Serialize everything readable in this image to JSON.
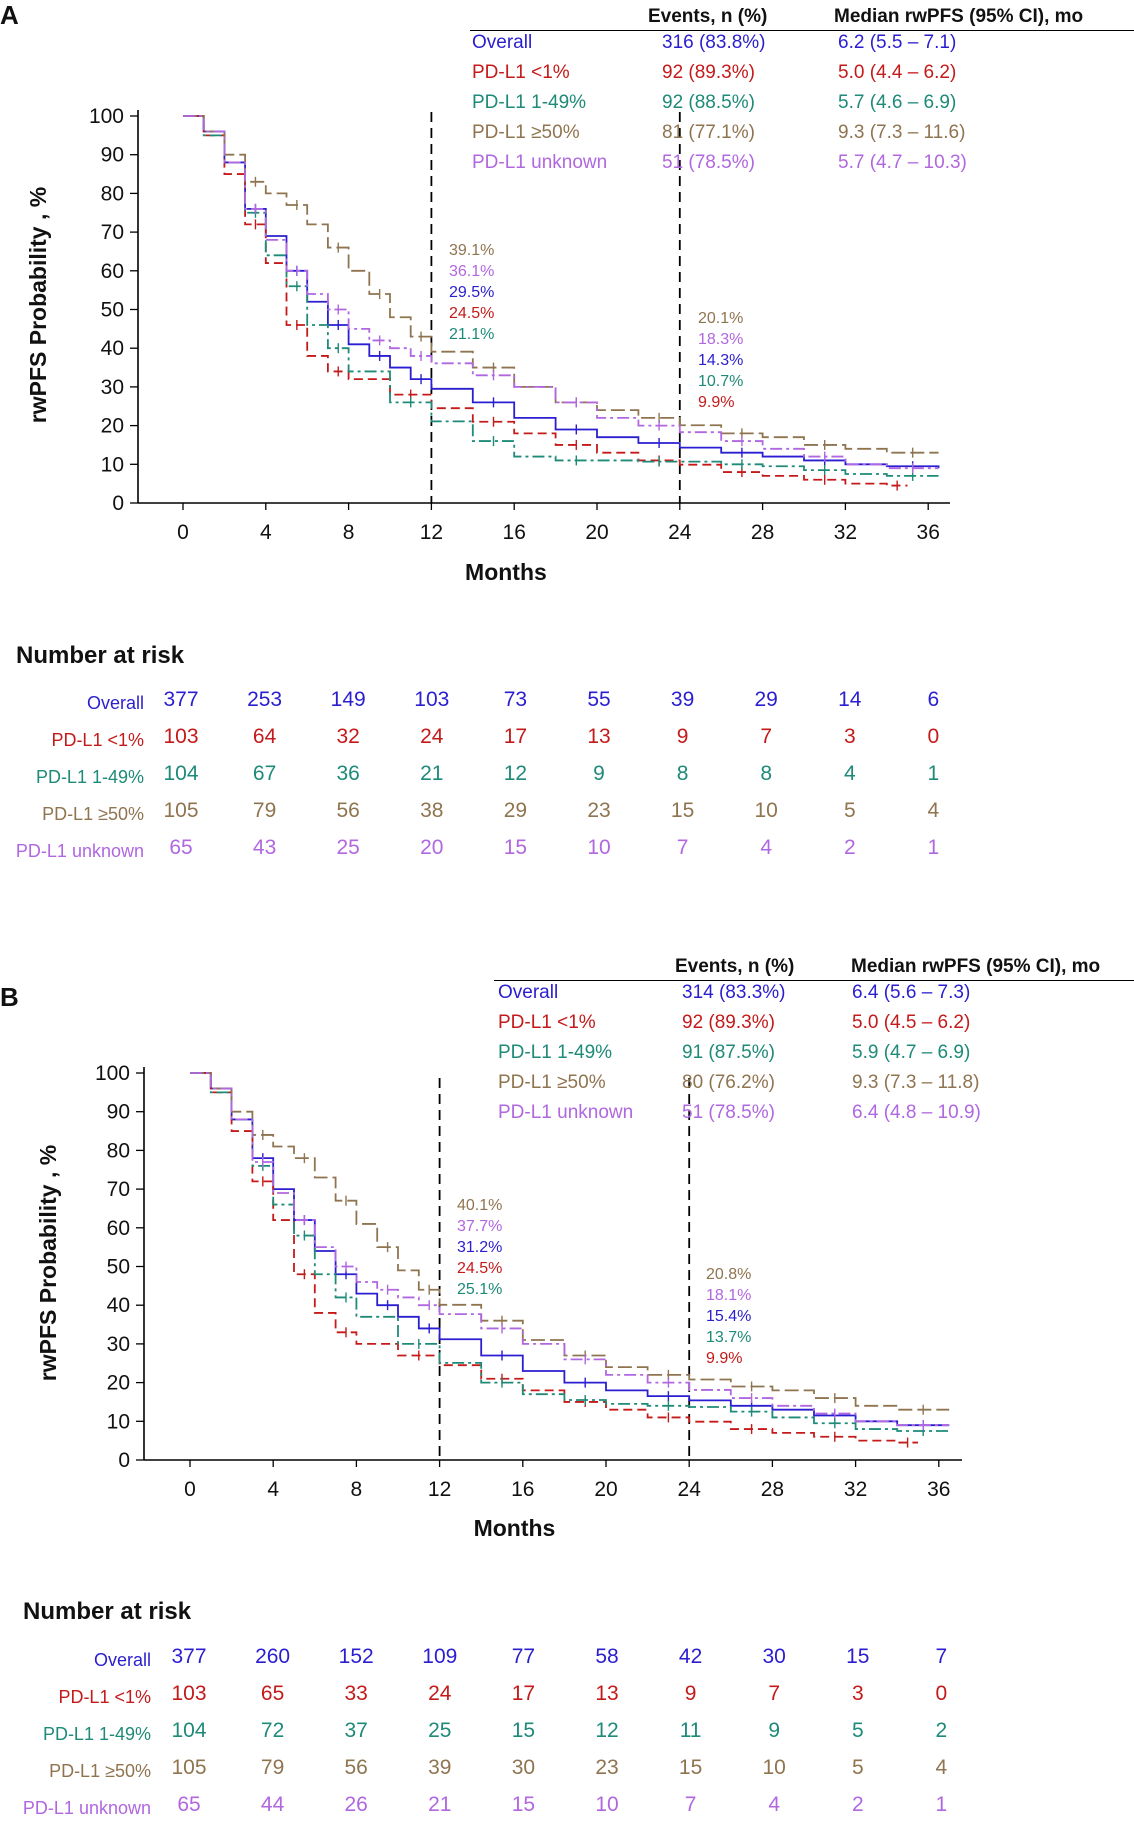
{
  "colors": {
    "overall": "#2a1ed0",
    "pdl1_lt1": "#c41a1a",
    "pdl1_1_49": "#1e8a78",
    "pdl1_ge50": "#8f7450",
    "pdl1_unknown": "#b067e0"
  },
  "panels": [
    {
      "label": "A",
      "table": {
        "events_header": "Events, n (%)",
        "median_header": "Median rwPFS (95% CI), mo",
        "rows": [
          {
            "name": "Overall",
            "events": "316 (83.8%)",
            "median": "6.2 (5.5 – 7.1)",
            "color_key": "overall"
          },
          {
            "name": "PD-L1 <1%",
            "events": "92 (89.3%)",
            "median": "5.0 (4.4 – 6.2)",
            "color_key": "pdl1_lt1"
          },
          {
            "name": "PD-L1 1-49%",
            "events": "92 (88.5%)",
            "median": "5.7 (4.6 – 6.9)",
            "color_key": "pdl1_1_49"
          },
          {
            "name": "PD-L1 ≥50%",
            "events": "81 (77.1%)",
            "median": "9.3 (7.3 – 11.6)",
            "color_key": "pdl1_ge50"
          },
          {
            "name": "PD-L1 unknown",
            "events": "51 (78.5%)",
            "median": "5.7 (4.7 – 10.3)",
            "color_key": "pdl1_unknown"
          }
        ]
      },
      "annotations_12": [
        {
          "text": "39.1%",
          "color_key": "pdl1_ge50"
        },
        {
          "text": "36.1%",
          "color_key": "pdl1_unknown"
        },
        {
          "text": "29.5%",
          "color_key": "overall"
        },
        {
          "text": "24.5%",
          "color_key": "pdl1_lt1"
        },
        {
          "text": "21.1%",
          "color_key": "pdl1_1_49"
        }
      ],
      "annotations_24": [
        {
          "text": "20.1%",
          "color_key": "pdl1_ge50"
        },
        {
          "text": "18.3%",
          "color_key": "pdl1_unknown"
        },
        {
          "text": "14.3%",
          "color_key": "overall"
        },
        {
          "text": "10.7%",
          "color_key": "pdl1_1_49"
        },
        {
          "text": "9.9%",
          "color_key": "pdl1_lt1"
        }
      ],
      "risk_title": "Number at risk",
      "risk_times": [
        0,
        4,
        8,
        12,
        16,
        20,
        24,
        28,
        32,
        36
      ],
      "risk_rows": [
        {
          "name": "Overall",
          "color_key": "overall",
          "values": [
            377,
            253,
            149,
            103,
            73,
            55,
            39,
            29,
            14,
            6
          ]
        },
        {
          "name": "PD-L1 <1%",
          "color_key": "pdl1_lt1",
          "values": [
            103,
            64,
            32,
            24,
            17,
            13,
            9,
            7,
            3,
            0
          ]
        },
        {
          "name": "PD-L1 1-49%",
          "color_key": "pdl1_1_49",
          "values": [
            104,
            67,
            36,
            21,
            12,
            9,
            8,
            8,
            4,
            1
          ]
        },
        {
          "name": "PD-L1 ≥50%",
          "color_key": "pdl1_ge50",
          "values": [
            105,
            79,
            56,
            38,
            29,
            23,
            15,
            10,
            5,
            4
          ]
        },
        {
          "name": "PD-L1 unknown",
          "color_key": "pdl1_unknown",
          "values": [
            65,
            43,
            25,
            20,
            15,
            10,
            7,
            4,
            2,
            1
          ]
        }
      ]
    },
    {
      "label": "B",
      "table": {
        "events_header": "Events, n (%)",
        "median_header": "Median rwPFS (95% CI), mo",
        "rows": [
          {
            "name": "Overall",
            "events": "314 (83.3%)",
            "median": "6.4 (5.6 – 7.3)",
            "color_key": "overall"
          },
          {
            "name": "PD-L1 <1%",
            "events": "92 (89.3%)",
            "median": "5.0 (4.5 – 6.2)",
            "color_key": "pdl1_lt1"
          },
          {
            "name": "PD-L1 1-49%",
            "events": "91 (87.5%)",
            "median": "5.9 (4.7 – 6.9)",
            "color_key": "pdl1_1_49"
          },
          {
            "name": "PD-L1 ≥50%",
            "events": "80 (76.2%)",
            "median": "9.3 (7.3 – 11.8)",
            "color_key": "pdl1_ge50"
          },
          {
            "name": "PD-L1 unknown",
            "events": "51 (78.5%)",
            "median": "6.4 (4.8 – 10.9)",
            "color_key": "pdl1_unknown"
          }
        ]
      },
      "annotations_12": [
        {
          "text": "40.1%",
          "color_key": "pdl1_ge50"
        },
        {
          "text": "37.7%",
          "color_key": "pdl1_unknown"
        },
        {
          "text": "31.2%",
          "color_key": "overall"
        },
        {
          "text": "24.5%",
          "color_key": "pdl1_lt1"
        },
        {
          "text": "25.1%",
          "color_key": "pdl1_1_49"
        }
      ],
      "annotations_24": [
        {
          "text": "20.8%",
          "color_key": "pdl1_ge50"
        },
        {
          "text": "18.1%",
          "color_key": "pdl1_unknown"
        },
        {
          "text": "15.4%",
          "color_key": "overall"
        },
        {
          "text": "13.7%",
          "color_key": "pdl1_1_49"
        },
        {
          "text": "9.9%",
          "color_key": "pdl1_lt1"
        }
      ],
      "risk_title": "Number at risk",
      "risk_times": [
        0,
        4,
        8,
        12,
        16,
        20,
        24,
        28,
        32,
        36
      ],
      "risk_rows": [
        {
          "name": "Overall",
          "color_key": "overall",
          "values": [
            377,
            260,
            152,
            109,
            77,
            58,
            42,
            30,
            15,
            7
          ]
        },
        {
          "name": "PD-L1 <1%",
          "color_key": "pdl1_lt1",
          "values": [
            103,
            65,
            33,
            24,
            17,
            13,
            9,
            7,
            3,
            0
          ]
        },
        {
          "name": "PD-L1 1-49%",
          "color_key": "pdl1_1_49",
          "values": [
            104,
            72,
            37,
            25,
            15,
            12,
            11,
            9,
            5,
            2
          ]
        },
        {
          "name": "PD-L1 ≥50%",
          "color_key": "pdl1_ge50",
          "values": [
            105,
            79,
            56,
            39,
            30,
            23,
            15,
            10,
            5,
            4
          ]
        },
        {
          "name": "PD-L1 unknown",
          "color_key": "pdl1_unknown",
          "values": [
            65,
            44,
            26,
            21,
            15,
            10,
            7,
            4,
            2,
            1
          ]
        }
      ]
    }
  ],
  "chart_data": [
    {
      "type": "line",
      "panel": "A",
      "title": "",
      "xlabel": "Months",
      "ylabel": "rwPFS Probability , %",
      "xlim": [
        -2,
        37
      ],
      "ylim": [
        0,
        100
      ],
      "xticks": [
        0,
        4,
        8,
        12,
        16,
        20,
        24,
        28,
        32,
        36
      ],
      "yticks": [
        0,
        10,
        20,
        30,
        40,
        50,
        60,
        70,
        80,
        90,
        100
      ],
      "reference_lines_x": [
        12,
        24
      ],
      "series": [
        {
          "name": "Overall",
          "color_key": "overall",
          "dash": "solid",
          "x": [
            0,
            1,
            2,
            3,
            4,
            5,
            6,
            7,
            8,
            9,
            10,
            11,
            12,
            14,
            16,
            18,
            20,
            22,
            24,
            26,
            28,
            30,
            32,
            34,
            36.5
          ],
          "y": [
            100,
            96,
            88,
            76,
            69,
            60,
            52,
            46,
            41,
            38,
            35,
            32,
            29.5,
            26,
            22,
            19,
            17,
            15.5,
            14.3,
            13,
            12,
            11,
            10,
            9.5,
            9
          ]
        },
        {
          "name": "PD-L1 <1%",
          "color_key": "pdl1_lt1",
          "dash": "dashed",
          "x": [
            0,
            1,
            2,
            3,
            4,
            5,
            6,
            7,
            8,
            10,
            12,
            14,
            16,
            18,
            20,
            22,
            24,
            26,
            28,
            30,
            32,
            34,
            35
          ],
          "y": [
            100,
            95,
            85,
            72,
            62,
            46,
            38,
            34,
            32,
            28,
            24.5,
            21,
            18,
            15,
            13,
            11,
            9.9,
            8,
            7,
            6,
            5,
            4.5,
            4.5
          ]
        },
        {
          "name": "PD-L1 1-49%",
          "color_key": "pdl1_1_49",
          "dash": "dashdot",
          "x": [
            0,
            1,
            2,
            3,
            4,
            5,
            6,
            7,
            8,
            10,
            12,
            14,
            16,
            18,
            20,
            22,
            24,
            26,
            28,
            30,
            32,
            34,
            36.5
          ],
          "y": [
            100,
            95,
            88,
            75,
            64,
            56,
            46,
            40,
            34,
            26,
            21.1,
            16,
            12,
            11,
            11,
            10.7,
            10.7,
            10,
            9.5,
            8.5,
            7.5,
            7,
            7
          ]
        },
        {
          "name": "PD-L1 ≥50%",
          "color_key": "pdl1_ge50",
          "dash": "longdash",
          "x": [
            0,
            1,
            2,
            3,
            4,
            5,
            6,
            7,
            8,
            9,
            10,
            11,
            12,
            14,
            16,
            18,
            20,
            22,
            24,
            26,
            28,
            30,
            32,
            34,
            36.5
          ],
          "y": [
            100,
            96,
            90,
            83,
            80,
            77,
            72,
            66,
            60,
            54,
            48,
            43,
            39.1,
            35,
            30,
            26,
            24,
            22,
            20.1,
            18,
            17,
            15,
            14,
            13,
            13
          ]
        },
        {
          "name": "PD-L1 unknown",
          "color_key": "pdl1_unknown",
          "dash": "dashdot",
          "x": [
            0,
            1,
            2,
            3,
            4,
            5,
            6,
            7,
            8,
            9,
            10,
            11,
            12,
            14,
            16,
            18,
            20,
            22,
            24,
            26,
            28,
            30,
            32,
            34,
            36.5
          ],
          "y": [
            100,
            96,
            88,
            76,
            68,
            60,
            54,
            50,
            45,
            42,
            40,
            38,
            36.1,
            33,
            30,
            26,
            22,
            20,
            18.3,
            16,
            14,
            12,
            10,
            9,
            9
          ]
        }
      ]
    },
    {
      "type": "line",
      "panel": "B",
      "title": "",
      "xlabel": "Months",
      "ylabel": "rwPFS Probability , %",
      "xlim": [
        -2,
        37
      ],
      "ylim": [
        0,
        100
      ],
      "xticks": [
        0,
        4,
        8,
        12,
        16,
        20,
        24,
        28,
        32,
        36
      ],
      "yticks": [
        0,
        10,
        20,
        30,
        40,
        50,
        60,
        70,
        80,
        90,
        100
      ],
      "reference_lines_x": [
        12,
        24
      ],
      "series": [
        {
          "name": "Overall",
          "color_key": "overall",
          "dash": "solid",
          "x": [
            0,
            1,
            2,
            3,
            4,
            5,
            6,
            7,
            8,
            9,
            10,
            11,
            12,
            14,
            16,
            18,
            20,
            22,
            24,
            26,
            28,
            30,
            32,
            34,
            36.5
          ],
          "y": [
            100,
            96,
            88,
            78,
            70,
            62,
            54,
            48,
            43,
            40,
            37,
            34,
            31.2,
            27,
            23,
            20,
            18,
            16.5,
            15.4,
            14,
            13,
            11.5,
            10,
            9,
            9
          ]
        },
        {
          "name": "PD-L1 <1%",
          "color_key": "pdl1_lt1",
          "dash": "dashed",
          "x": [
            0,
            1,
            2,
            3,
            4,
            5,
            6,
            7,
            8,
            10,
            12,
            14,
            16,
            18,
            20,
            22,
            24,
            26,
            28,
            30,
            32,
            34,
            35
          ],
          "y": [
            100,
            95,
            85,
            72,
            62,
            48,
            38,
            33,
            30,
            27,
            24.5,
            21,
            18,
            15,
            13,
            11,
            9.9,
            8,
            7,
            6,
            5,
            4.5,
            4.5
          ]
        },
        {
          "name": "PD-L1 1-49%",
          "color_key": "pdl1_1_49",
          "dash": "dashdot",
          "x": [
            0,
            1,
            2,
            3,
            4,
            5,
            6,
            7,
            8,
            10,
            12,
            14,
            16,
            18,
            20,
            22,
            24,
            26,
            28,
            30,
            32,
            34,
            36.5
          ],
          "y": [
            100,
            95,
            88,
            76,
            66,
            58,
            48,
            42,
            37,
            30,
            25.1,
            20,
            17,
            15.5,
            14.5,
            14,
            13.7,
            12.5,
            11,
            9.5,
            8,
            7.5,
            7.5
          ]
        },
        {
          "name": "PD-L1 ≥50%",
          "color_key": "pdl1_ge50",
          "dash": "longdash",
          "x": [
            0,
            1,
            2,
            3,
            4,
            5,
            6,
            7,
            8,
            9,
            10,
            11,
            12,
            14,
            16,
            18,
            20,
            22,
            24,
            26,
            28,
            30,
            32,
            34,
            36.5
          ],
          "y": [
            100,
            96,
            90,
            84,
            81,
            78,
            73,
            67,
            61,
            55,
            49,
            44,
            40.1,
            36,
            31,
            27,
            24,
            22,
            20.8,
            19,
            18,
            16,
            14,
            13,
            13
          ]
        },
        {
          "name": "PD-L1 unknown",
          "color_key": "pdl1_unknown",
          "dash": "dashdot",
          "x": [
            0,
            1,
            2,
            3,
            4,
            5,
            6,
            7,
            8,
            9,
            10,
            11,
            12,
            14,
            16,
            18,
            20,
            22,
            24,
            26,
            28,
            30,
            32,
            34,
            36.5
          ],
          "y": [
            100,
            96,
            88,
            77,
            69,
            62,
            55,
            50,
            46,
            44,
            42,
            40,
            37.7,
            34,
            30,
            26,
            22,
            20,
            18.1,
            16,
            14,
            12,
            10,
            9,
            9
          ]
        }
      ]
    }
  ]
}
